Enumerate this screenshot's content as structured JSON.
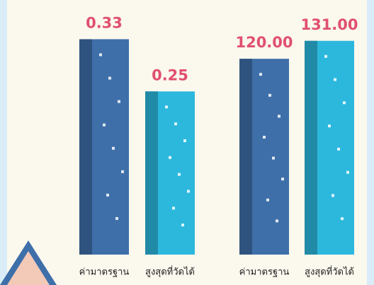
{
  "chart_data": [
    {
      "type": "bar",
      "categories": [
        "ค่ามาตรฐาน",
        "สูงสุดที่วัดได้"
      ],
      "values": [
        0.33,
        0.25
      ],
      "value_labels": [
        "0.33",
        "0.25"
      ],
      "colors": [
        "#3e6fa9",
        "#2cb8dd"
      ],
      "ylim": [
        0,
        0.35
      ]
    },
    {
      "type": "bar",
      "categories": [
        "ค่ามาตรฐาน",
        "สูงสุดที่วัดได้"
      ],
      "values": [
        120,
        131
      ],
      "value_labels": [
        "120.00",
        "131.00"
      ],
      "colors": [
        "#3e6fa9",
        "#2cb8dd"
      ],
      "ylim": [
        0,
        140
      ]
    }
  ]
}
